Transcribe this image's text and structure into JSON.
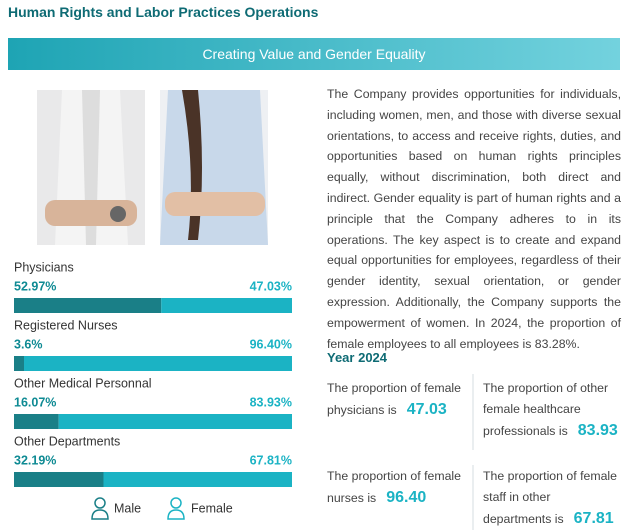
{
  "header": {
    "title": "Human Rights and Labor Practices Operations"
  },
  "banner": {
    "title": "Creating Value and Gender Equality"
  },
  "paragraph": "The Company provides opportunities for individuals, including women, men, and those with diverse sexual orientations, to access and receive rights, duties, and opportunities based on human rights principles equally, without discrimination, both direct and indirect. Gender equality is part of human rights and a principle that the Company adheres to in its operations. The key aspect is to create and expand equal opportunities for employees, regardless of their gender identity, sexual orientation, or gender expression. Additionally, the Company supports the empowerment of women. In 2024, the proportion of female employees to all employees is 83.28%.",
  "breakdown": {
    "rows": [
      {
        "label": "Physicians",
        "values": [
          52.97,
          47.03
        ],
        "value_labels": [
          "52.97%",
          "47.03%"
        ]
      },
      {
        "label": "Registered Nurses",
        "values": [
          3.6,
          96.4
        ],
        "value_labels": [
          "3.6%",
          "96.40%"
        ]
      },
      {
        "label": "Other Medical Personnal",
        "values": [
          16.07,
          83.93
        ],
        "value_labels": [
          "16.07%",
          "83.93%"
        ]
      },
      {
        "label": "Other Departments",
        "values": [
          32.19,
          67.81
        ],
        "value_labels": [
          "32.19%",
          "67.81%"
        ]
      }
    ],
    "legend": [
      "Male",
      "Female"
    ],
    "colors": [
      "#1a7f87",
      "#1bb3c4"
    ]
  },
  "year_section": {
    "title": "Year 2024",
    "stats": [
      {
        "text": "The proportion of female physicians is",
        "value": "47.03"
      },
      {
        "text": "The proportion of other female healthcare professionals is",
        "value": "83.93"
      },
      {
        "text": "The proportion of female nurses is",
        "value": "96.40"
      },
      {
        "text": "The proportion of female staff in other departments is",
        "value": "67.81"
      }
    ]
  }
}
